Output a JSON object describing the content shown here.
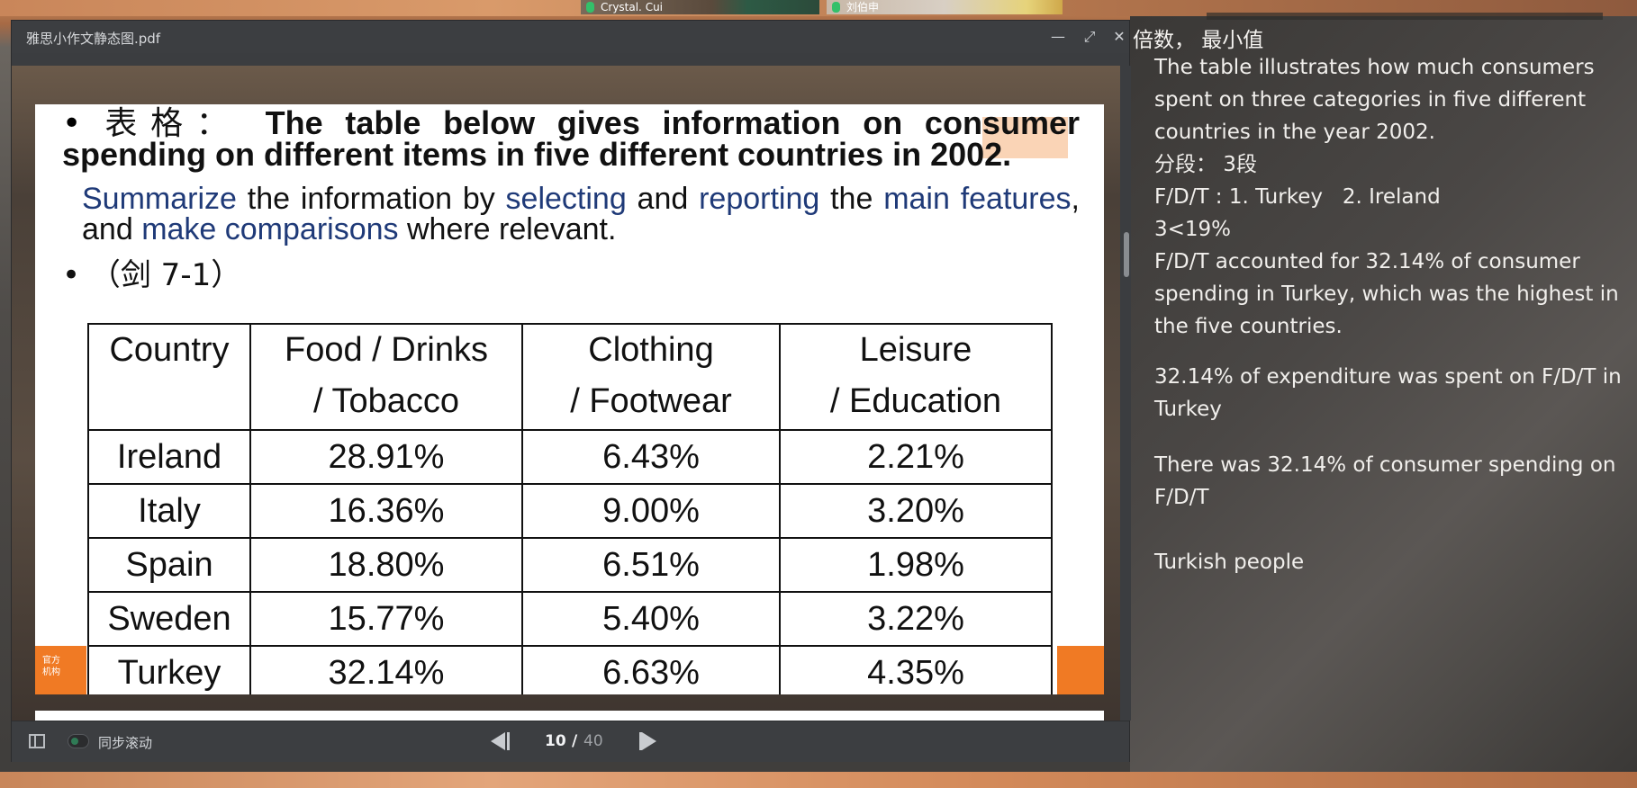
{
  "meeting": {
    "participant_1": "Crystal. Cui",
    "participant_2": "刘伯申"
  },
  "viewer": {
    "title": "雅思小作文静态图.pdf",
    "sync_scroll_label": "同步滚动",
    "page_current": "10",
    "page_separator": "/",
    "page_total": "40",
    "controls": {
      "minimize": "—",
      "maximize": "⤢",
      "close": "✕"
    }
  },
  "slide": {
    "bullet_label": "表格：",
    "prompt_bold": "The table below gives information on consumer spending on different items in five different countries in 2002.",
    "instr": {
      "w1": "Summarize",
      "t1": " the information by ",
      "w2": "selecting",
      "t2": " and ",
      "w3": "reporting",
      "t3": " the ",
      "w4": "main features",
      "t4": ", and ",
      "w5": "make comparisons",
      "t5": " where relevant."
    },
    "source": "（剑 7-1）",
    "footer_text": "官方\n机构",
    "table": {
      "headers": [
        "Country",
        "Food / Drinks / Tobacco",
        "Clothing / Footwear",
        "Leisure / Education"
      ],
      "header_lines": [
        [
          "Country",
          ""
        ],
        [
          "Food / Drinks",
          "/ Tobacco"
        ],
        [
          "Clothing",
          "/ Footwear"
        ],
        [
          "Leisure",
          "/ Education"
        ]
      ],
      "rows": [
        [
          "Ireland",
          "28.91%",
          "6.43%",
          "2.21%"
        ],
        [
          "Italy",
          "16.36%",
          "9.00%",
          "3.20%"
        ],
        [
          "Spain",
          "18.80%",
          "6.51%",
          "1.98%"
        ],
        [
          "Sweden",
          "15.77%",
          "5.40%",
          "3.22%"
        ],
        [
          "Turkey",
          "32.14%",
          "6.63%",
          "4.35%"
        ]
      ]
    }
  },
  "notes": {
    "top_line": "倍数， 最小值",
    "p1": "The table illustrates how much consumers spent on three categories in five different countries in the year 2002.",
    "p2": "分段： 3段",
    "p3": "F/D/T : 1. Turkey   2. Ireland",
    "p4": "3<19%",
    "p5": "F/D/T accounted for 32.14% of consumer spending in Turkey, which was the highest in the five countries.",
    "p6": "32.14% of expenditure was spent on F/D/T in Turkey",
    "p7": "There was 32.14% of consumer spending on F/D/T",
    "p8": "Turkish people"
  }
}
